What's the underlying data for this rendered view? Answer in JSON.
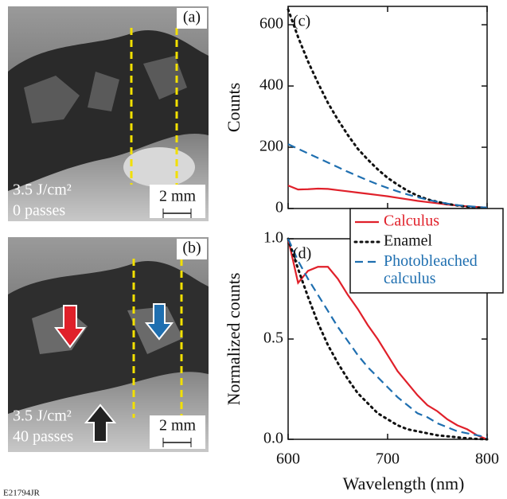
{
  "panels": [
    {
      "label": "(a)",
      "fluence": "3.5 J/cm²",
      "passes": "0 passes",
      "scale": "2 mm"
    },
    {
      "label": "(b)",
      "fluence": "3.5 J/cm²",
      "passes": "40 passes",
      "scale": "2 mm"
    }
  ],
  "figure_id": "E21794JR",
  "chart_data": [
    {
      "type": "line",
      "annotation": "(c)",
      "ylabel": "Counts",
      "show_xtick_labels": false,
      "x": [
        600,
        610,
        620,
        630,
        640,
        650,
        660,
        670,
        680,
        690,
        700,
        710,
        720,
        730,
        740,
        750,
        760,
        770,
        780,
        790,
        800
      ],
      "xlim": [
        600,
        800
      ],
      "xticks": [
        600,
        700,
        800
      ],
      "ylim": [
        0,
        660
      ],
      "yticks": [
        0,
        200,
        400,
        600
      ],
      "series": [
        {
          "color": "#e0202a",
          "dash": "solid",
          "values": [
            75,
            62,
            63,
            65,
            64,
            60,
            56,
            52,
            48,
            44,
            40,
            35,
            30,
            25,
            21,
            17,
            13,
            10,
            7,
            5,
            3
          ]
        },
        {
          "color": "#111111",
          "dash": "dotted",
          "values": [
            650,
            560,
            480,
            410,
            345,
            290,
            240,
            195,
            160,
            128,
            100,
            78,
            58,
            42,
            30,
            22,
            15,
            10,
            6,
            3,
            2
          ]
        },
        {
          "color": "#1f6fb0",
          "dash": "dashed",
          "values": [
            210,
            195,
            180,
            165,
            150,
            135,
            120,
            106,
            92,
            79,
            67,
            56,
            46,
            37,
            29,
            22,
            16,
            11,
            8,
            5,
            3
          ]
        }
      ]
    },
    {
      "type": "line",
      "annotation": "(d)",
      "ylabel": "Normalized counts",
      "xlabel": "Wavelength (nm)",
      "show_xtick_labels": true,
      "legend": "top-right",
      "x": [
        600,
        610,
        620,
        630,
        640,
        650,
        660,
        670,
        680,
        690,
        700,
        710,
        720,
        730,
        740,
        750,
        760,
        770,
        780,
        790,
        800
      ],
      "xlim": [
        600,
        800
      ],
      "xticks": [
        600,
        700,
        800
      ],
      "ylim": [
        0,
        1.0
      ],
      "yticks": [
        {
          "value": 0,
          "label": "0.0"
        },
        {
          "value": 0.5,
          "label": "0.5"
        },
        {
          "value": 1.0,
          "label": "1.0"
        }
      ],
      "series": [
        {
          "name": "Calculus",
          "color": "#e0202a",
          "dash": "solid",
          "values": [
            1.0,
            0.78,
            0.84,
            0.86,
            0.86,
            0.8,
            0.72,
            0.65,
            0.57,
            0.5,
            0.42,
            0.34,
            0.28,
            0.22,
            0.17,
            0.14,
            0.1,
            0.07,
            0.05,
            0.02,
            0.0
          ]
        },
        {
          "name": "Enamel",
          "color": "#111111",
          "dash": "dotted",
          "values": [
            1.0,
            0.85,
            0.71,
            0.58,
            0.47,
            0.38,
            0.3,
            0.23,
            0.18,
            0.13,
            0.1,
            0.07,
            0.05,
            0.04,
            0.03,
            0.02,
            0.015,
            0.01,
            0.005,
            0.002,
            0
          ]
        },
        {
          "name": "Photobleached calculus",
          "color": "#1f6fb0",
          "dash": "dashed",
          "values": [
            1.0,
            0.89,
            0.8,
            0.72,
            0.64,
            0.56,
            0.49,
            0.42,
            0.36,
            0.31,
            0.26,
            0.21,
            0.17,
            0.13,
            0.11,
            0.08,
            0.06,
            0.04,
            0.03,
            0.02,
            0.01
          ]
        }
      ]
    }
  ]
}
